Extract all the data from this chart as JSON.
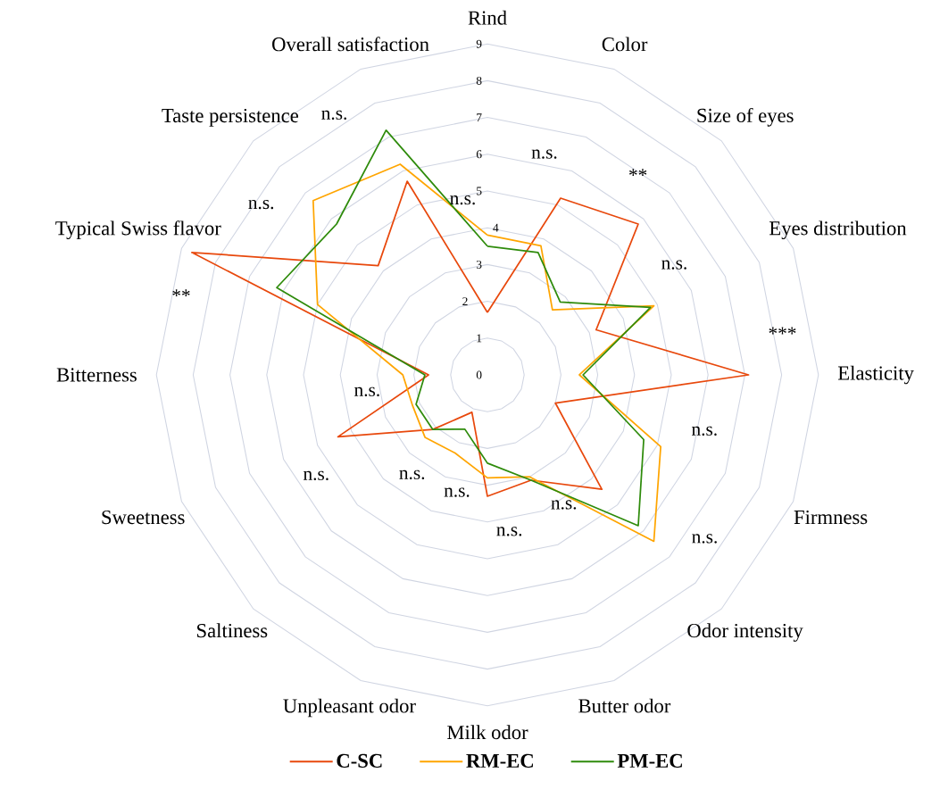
{
  "chart_data": {
    "type": "radar",
    "categories": [
      "Rind",
      "Color",
      "Size of eyes",
      "Eyes distribution",
      "Elasticity",
      "Firmness",
      "Odor intensity",
      "Butter odor",
      "Milk odor",
      "Unpleasant odor",
      "Saltiness",
      "Sweetness",
      "Bitterness",
      "Typical Swiss flavor",
      "Taste persistence",
      "Overall satisfaction"
    ],
    "series": [
      {
        "name": "C-SC",
        "color": "#e8480c",
        "values": [
          1.7,
          5.2,
          5.8,
          3.2,
          7.1,
          2.0,
          4.4,
          3.1,
          3.3,
          1.1,
          2.1,
          4.4,
          1.6,
          8.7,
          4.2,
          5.7
        ]
      },
      {
        "name": "RM-EC",
        "color": "#ffa500",
        "values": [
          3.8,
          3.8,
          2.5,
          4.9,
          2.5,
          5.1,
          6.4,
          3.0,
          2.8,
          2.3,
          2.4,
          2.2,
          2.3,
          5.0,
          6.7,
          6.2
        ]
      },
      {
        "name": "PM-EC",
        "color": "#2e8b0b",
        "values": [
          3.5,
          3.6,
          2.8,
          4.8,
          2.6,
          4.6,
          5.8,
          3.1,
          2.4,
          1.6,
          2.1,
          2.1,
          1.7,
          6.2,
          5.8,
          7.2
        ]
      }
    ],
    "ylim": [
      0,
      9
    ],
    "yticks": [
      0,
      1,
      2,
      3,
      4,
      5,
      6,
      7,
      8,
      9
    ],
    "grid": true,
    "legend": "bottom",
    "annotations": [
      "n.s.",
      "n.s.",
      "**",
      "n.s.",
      "***",
      "n.s.",
      "n.s.",
      "n.s.",
      "n.s.",
      "n.s.",
      "n.s.",
      "n.s.",
      "n.s.",
      "**",
      "n.s.",
      "n.s."
    ]
  }
}
